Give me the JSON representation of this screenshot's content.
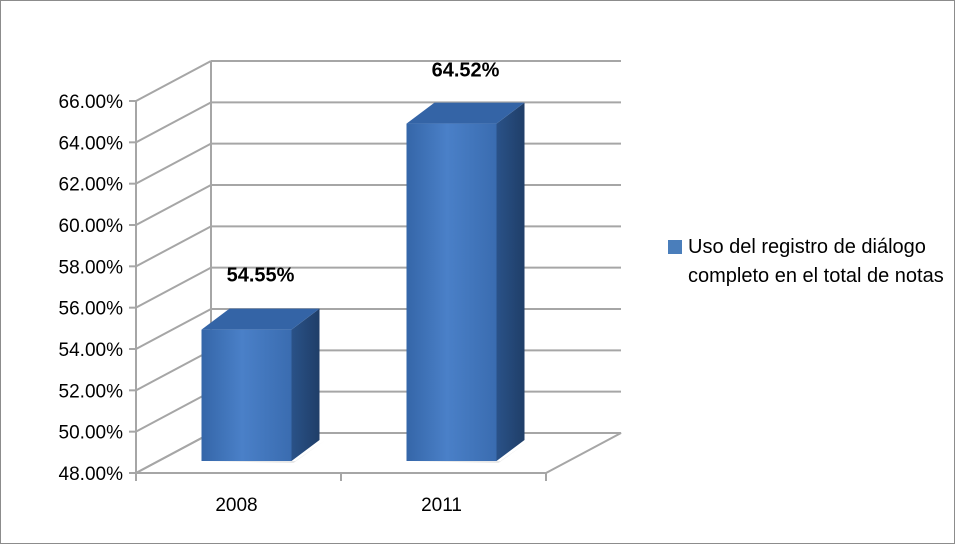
{
  "chart_data": {
    "type": "bar",
    "categories": [
      "2008",
      "2011"
    ],
    "series": [
      {
        "name": "Uso del registro de diálogo completo en el total de notas",
        "values": [
          54.55,
          64.52
        ],
        "labels": [
          "54.55%",
          "64.52%"
        ]
      }
    ],
    "title": "",
    "xlabel": "",
    "ylabel": "",
    "ylim": [
      48,
      66
    ],
    "yticks": [
      "48.00%",
      "50.00%",
      "52.00%",
      "54.00%",
      "56.00%",
      "58.00%",
      "60.00%",
      "62.00%",
      "64.00%",
      "66.00%"
    ],
    "grid": true,
    "three_d": true,
    "legend_position": "right",
    "colors": {
      "bar_front": "#3d6fb0",
      "bar_side": "#274b7a",
      "bar_top": "#3464a6",
      "grid": "#a6a6a6"
    }
  }
}
